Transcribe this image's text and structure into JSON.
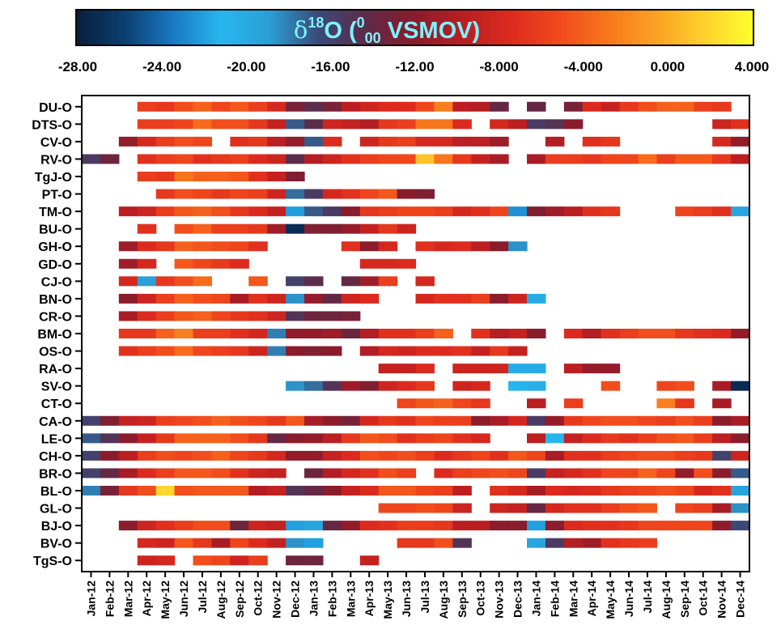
{
  "chart_data": {
    "type": "heatmap",
    "title": "δ18O (0/00 VSMOV)",
    "title_parts": {
      "delta": "δ",
      "sup": "18",
      "element": "O (",
      "num": "0",
      "den": "00",
      "rest": " VSMOV)"
    },
    "colorbar": {
      "range": [
        -28,
        4
      ],
      "tick_labels": [
        "-28.00",
        "-24.00",
        "-20.00",
        "-16.00",
        "-12.00",
        "-8.000",
        "-4.000",
        "0.000",
        "4.000"
      ],
      "colormap": [
        "#0a1e3c",
        "#0b3f70",
        "#1a78c2",
        "#27b6ee",
        "#2a9fd6",
        "#3a4a78",
        "#5e2a48",
        "#8a1c2c",
        "#b81e22",
        "#dd2b1e",
        "#f24a1c",
        "#f7781c",
        "#fba224",
        "#fdd12c",
        "#ffff30"
      ]
    },
    "x_categories": [
      "Jan-12",
      "Feb-12",
      "Mar-12",
      "Apr-12",
      "May-12",
      "Jun-12",
      "Jul-12",
      "Aug-12",
      "Sep-12",
      "Oct-12",
      "Nov-12",
      "Dec-12",
      "Jan-13",
      "Feb-13",
      "Mar-13",
      "Apr-13",
      "May-13",
      "Jun-13",
      "Jul-13",
      "Aug-13",
      "Sep-13",
      "Oct-13",
      "Nov-13",
      "Dec-13",
      "Jan-14",
      "Feb-14",
      "Mar-14",
      "Apr-14",
      "May-14",
      "Jun-14",
      "Jul-14",
      "Aug-14",
      "Sep-14",
      "Oct-14",
      "Nov-14",
      "Dec-14"
    ],
    "y_categories": [
      "DU-O",
      "DTS-O",
      "CV-O",
      "RV-O",
      "TgJ-O",
      "PT-O",
      "TM-O",
      "BU-O",
      "GH-O",
      "GD-O",
      "CJ-O",
      "BN-O",
      "CR-O",
      "BM-O",
      "OS-O",
      "RA-O",
      "SV-O",
      "CT-O",
      "CA-O",
      "LE-O",
      "CH-O",
      "BR-O",
      "BL-O",
      "GL-O",
      "BJ-O",
      "BV-O",
      "TgS-O"
    ],
    "rows": [
      [
        null,
        null,
        null,
        -6.0,
        -6.5,
        -5.0,
        -4.0,
        -5.5,
        -4.5,
        -6.0,
        -8.0,
        -13.0,
        -14.5,
        -13.0,
        -9.5,
        -8.5,
        -7.5,
        -7.5,
        -5.5,
        -2.5,
        -9.5,
        -10.0,
        -14.0,
        null,
        -14.0,
        null,
        -13.0,
        -7.5,
        -9.0,
        -6.5,
        -5.0,
        -4.0,
        -4.0,
        -6.0,
        -6.5,
        null
      ],
      [
        null,
        null,
        null,
        -6.0,
        -6.0,
        -5.5,
        -3.5,
        -5.0,
        -5.0,
        -6.5,
        -9.0,
        -17.0,
        -14.5,
        -8.5,
        -9.0,
        -10.0,
        -6.5,
        -6.0,
        -3.0,
        -3.0,
        -7.5,
        null,
        -8.0,
        -9.5,
        -15.5,
        -15.0,
        -12.0,
        null,
        null,
        null,
        null,
        null,
        null,
        null,
        -8.5,
        -7.0
      ],
      [
        null,
        null,
        -11.5,
        -8.0,
        -6.0,
        -5.0,
        -5.5,
        null,
        -7.0,
        -6.5,
        -9.5,
        -11.5,
        -17.0,
        -7.5,
        null,
        -8.5,
        -6.5,
        -6.0,
        -8.0,
        -8.0,
        -9.5,
        -9.5,
        -11.0,
        null,
        null,
        -10.0,
        null,
        -7.0,
        -6.5,
        null,
        null,
        null,
        null,
        null,
        -8.0,
        -11.5
      ],
      [
        -15.5,
        -13.5,
        null,
        -7.0,
        -6.0,
        -5.5,
        -7.0,
        -6.5,
        -6.0,
        -7.5,
        -8.5,
        -14.5,
        -10.0,
        -8.5,
        -7.0,
        -6.0,
        -5.5,
        -5.5,
        1.0,
        -3.0,
        -6.5,
        -9.0,
        -10.5,
        null,
        -10.5,
        -6.0,
        -6.0,
        -6.5,
        -5.5,
        -5.5,
        -3.5,
        -6.0,
        -4.5,
        -4.5,
        -6.5,
        -9.5
      ],
      [
        null,
        null,
        null,
        -6.0,
        -6.5,
        -3.0,
        -4.0,
        -4.0,
        -4.5,
        -7.0,
        -9.0,
        -12.5,
        null,
        null,
        null,
        null,
        null,
        null,
        null,
        null,
        null,
        null,
        null,
        null,
        null,
        null,
        null,
        null,
        null,
        null,
        null,
        null,
        null,
        null,
        null,
        null
      ],
      [
        null,
        null,
        null,
        null,
        -6.5,
        -5.0,
        -5.5,
        -6.5,
        -5.5,
        -6.0,
        -8.5,
        -17.5,
        -15.5,
        -8.0,
        -7.0,
        -5.5,
        -4.5,
        -12.0,
        -12.5,
        null,
        null,
        null,
        null,
        null,
        null,
        null,
        null,
        null,
        null,
        null,
        null,
        null,
        null,
        null,
        null,
        null
      ],
      [
        null,
        null,
        -9.5,
        -8.5,
        -6.0,
        -4.5,
        -4.0,
        -5.0,
        -6.5,
        -7.5,
        -9.0,
        -22.0,
        -17.0,
        -15.5,
        -12.0,
        -6.5,
        -6.0,
        -5.5,
        -5.5,
        -6.0,
        -8.0,
        -7.0,
        -5.5,
        -22.5,
        -12.5,
        -11.0,
        -9.5,
        -7.0,
        -6.5,
        null,
        null,
        null,
        -5.5,
        -6.0,
        -7.0,
        -19.5
      ],
      [
        null,
        null,
        null,
        -7.0,
        null,
        -5.0,
        -4.0,
        -6.0,
        -6.0,
        -6.5,
        -11.0,
        -27.0,
        -12.5,
        -12.5,
        -11.5,
        -9.0,
        -6.5,
        -8.5,
        null,
        null,
        null,
        null,
        null,
        null,
        null,
        null,
        null,
        null,
        null,
        null,
        null,
        null,
        null,
        null,
        null,
        null
      ],
      [
        null,
        null,
        -11.0,
        -7.5,
        -6.5,
        -4.0,
        -4.5,
        -5.0,
        -5.5,
        -7.0,
        null,
        null,
        null,
        null,
        -7.0,
        -12.0,
        -8.0,
        null,
        -7.0,
        -8.0,
        -7.5,
        -9.5,
        -12.0,
        -18.5,
        null,
        null,
        null,
        null,
        null,
        null,
        null,
        null,
        null,
        null,
        null,
        null
      ],
      [
        null,
        null,
        -11.0,
        -8.0,
        null,
        -4.5,
        -5.5,
        -6.5,
        -7.5,
        null,
        null,
        null,
        null,
        null,
        null,
        -8.0,
        -8.0,
        -7.5,
        null,
        null,
        null,
        null,
        null,
        null,
        null,
        null,
        null,
        null,
        null,
        null,
        null,
        null,
        null,
        null,
        null,
        null
      ],
      [
        null,
        null,
        -8.0,
        -19.0,
        -6.5,
        -5.0,
        -3.5,
        null,
        null,
        -4.5,
        null,
        -16.0,
        -14.5,
        null,
        -14.0,
        -11.0,
        -6.0,
        null,
        -8.0,
        null,
        null,
        null,
        null,
        null,
        null,
        null,
        null,
        null,
        null,
        null,
        null,
        null,
        null,
        null,
        null,
        null
      ],
      [
        null,
        null,
        -12.0,
        -8.5,
        -6.0,
        -4.0,
        -5.0,
        -5.5,
        -10.5,
        -7.0,
        -8.5,
        -18.5,
        -11.5,
        -14.0,
        -8.5,
        -7.5,
        null,
        null,
        -8.0,
        -7.0,
        -7.0,
        -6.0,
        -12.0,
        -8.5,
        -21.5,
        null,
        null,
        null,
        null,
        null,
        null,
        null,
        null,
        null,
        null,
        null
      ],
      [
        null,
        null,
        -10.5,
        -7.5,
        -6.0,
        -4.5,
        -4.0,
        -5.5,
        -6.5,
        -7.0,
        -8.5,
        -15.0,
        -13.5,
        -13.5,
        -13.0,
        null,
        null,
        null,
        null,
        null,
        null,
        null,
        null,
        null,
        null,
        null,
        null,
        null,
        null,
        null,
        null,
        null,
        null,
        null,
        null,
        null
      ],
      [
        null,
        null,
        -6.5,
        -6.5,
        -4.0,
        -2.5,
        -6.0,
        -6.0,
        -7.0,
        -8.0,
        -18.0,
        -11.5,
        -11.5,
        -11.0,
        -13.5,
        -10.0,
        -7.0,
        -7.0,
        -6.0,
        -4.0,
        null,
        -7.0,
        -10.0,
        -9.0,
        -12.0,
        null,
        -7.5,
        -10.0,
        -7.0,
        -6.0,
        -5.0,
        -5.0,
        -6.5,
        -7.0,
        -7.5,
        -11.5
      ],
      [
        null,
        null,
        -7.0,
        -6.0,
        -5.0,
        -3.5,
        -5.5,
        -6.0,
        -6.5,
        -8.5,
        -18.0,
        -12.0,
        -12.5,
        -12.0,
        null,
        -10.0,
        -8.0,
        -8.5,
        -7.5,
        -7.5,
        -7.0,
        -9.0,
        -6.5,
        -9.0,
        null,
        null,
        null,
        null,
        null,
        null,
        null,
        null,
        null,
        null,
        null,
        null
      ],
      [
        null,
        null,
        null,
        null,
        null,
        null,
        null,
        null,
        null,
        null,
        null,
        null,
        null,
        null,
        null,
        null,
        -9.0,
        -9.0,
        -7.5,
        null,
        -8.5,
        -8.5,
        -8.5,
        -21.5,
        -21.5,
        null,
        -9.5,
        -11.5,
        -11.5,
        null,
        null,
        null,
        null,
        null,
        null,
        null
      ],
      [
        null,
        null,
        null,
        null,
        null,
        null,
        null,
        null,
        null,
        null,
        null,
        -18.5,
        -17.5,
        -15.0,
        -11.0,
        -12.5,
        -8.5,
        -7.5,
        -6.5,
        null,
        -8.5,
        -8.0,
        null,
        -21.0,
        -20.5,
        null,
        null,
        null,
        -5.0,
        null,
        null,
        -5.5,
        -5.0,
        null,
        -10.5,
        -27.0
      ],
      [
        null,
        null,
        null,
        null,
        null,
        null,
        null,
        null,
        null,
        null,
        null,
        null,
        null,
        null,
        null,
        null,
        null,
        -5.5,
        -4.5,
        -4.0,
        -5.5,
        -6.5,
        null,
        null,
        -9.5,
        null,
        -6.0,
        null,
        null,
        null,
        null,
        -2.5,
        -6.5,
        null,
        -10.5,
        null
      ],
      [
        -16.0,
        -12.5,
        -9.0,
        -8.5,
        -6.0,
        -5.5,
        -5.0,
        -4.0,
        -5.0,
        -5.5,
        -6.5,
        -4.5,
        -10.5,
        -12.0,
        -13.0,
        -8.0,
        -6.5,
        -7.0,
        -5.5,
        -6.0,
        -6.0,
        -12.0,
        -10.5,
        -8.0,
        -15.5,
        -11.5,
        -6.5,
        -5.5,
        -5.0,
        -5.0,
        -5.5,
        -6.0,
        -5.0,
        -6.0,
        -12.0,
        -10.5
      ],
      [
        -17.0,
        -15.0,
        -12.0,
        -9.0,
        -6.5,
        -4.0,
        -4.0,
        -4.0,
        -5.0,
        -6.5,
        -14.0,
        -12.0,
        -11.5,
        -9.5,
        -6.5,
        -4.5,
        -5.0,
        -7.0,
        -6.0,
        -5.5,
        -7.0,
        -8.0,
        null,
        null,
        -9.5,
        -21.0,
        -9.0,
        -7.5,
        -6.5,
        -7.0,
        -6.0,
        -5.0,
        -4.5,
        -6.0,
        -9.5,
        -12.0
      ],
      [
        -16.0,
        -12.0,
        -9.5,
        -6.0,
        -5.0,
        -5.5,
        -5.0,
        -4.0,
        -5.5,
        -6.5,
        -8.0,
        -11.5,
        -11.5,
        -9.0,
        -7.5,
        -5.0,
        -5.5,
        -5.0,
        -6.0,
        -7.5,
        -6.5,
        -5.5,
        -7.0,
        -4.5,
        -5.5,
        -10.5,
        -7.0,
        -7.0,
        -6.0,
        -5.5,
        -5.0,
        -5.0,
        -6.0,
        -6.5,
        -16.0,
        -8.5
      ],
      [
        -16.0,
        -14.0,
        -10.5,
        -7.5,
        -6.0,
        -4.5,
        -4.5,
        -5.0,
        -7.0,
        -8.5,
        -9.0,
        null,
        -13.5,
        -10.0,
        -8.0,
        -7.0,
        -5.0,
        -6.0,
        null,
        -7.5,
        -6.0,
        -5.5,
        -5.0,
        -5.5,
        -15.5,
        -9.0,
        -8.0,
        -7.0,
        -5.5,
        -5.5,
        -4.0,
        -5.5,
        -11.5,
        -5.0,
        -12.0,
        -17.0
      ],
      [
        -18.0,
        -13.0,
        -6.5,
        -5.0,
        2.0,
        -5.0,
        -4.5,
        -4.5,
        -4.5,
        -10.0,
        -9.0,
        -15.0,
        -14.0,
        -12.0,
        -9.0,
        -7.5,
        -4.5,
        -4.5,
        -5.5,
        -6.0,
        -9.5,
        null,
        -7.0,
        -8.0,
        -10.5,
        -7.5,
        -8.0,
        -7.5,
        -6.5,
        -6.0,
        -5.5,
        -5.0,
        -5.5,
        -8.0,
        -7.0,
        -19.5
      ],
      [
        null,
        null,
        null,
        null,
        null,
        null,
        null,
        null,
        null,
        null,
        null,
        null,
        null,
        null,
        null,
        null,
        -5.5,
        -5.5,
        -5.0,
        -5.5,
        -8.5,
        null,
        -8.5,
        -9.0,
        -14.0,
        -8.0,
        -7.0,
        -7.0,
        -6.0,
        -5.0,
        -4.5,
        null,
        -5.5,
        -6.0,
        -10.5,
        -18.5
      ],
      [
        null,
        null,
        -12.0,
        -8.5,
        -7.0,
        -6.0,
        -5.0,
        -5.0,
        -13.5,
        -8.5,
        -9.0,
        -22.0,
        -19.5,
        -14.0,
        -11.5,
        -7.5,
        -7.0,
        -6.0,
        -6.0,
        -6.5,
        -9.5,
        -9.5,
        -12.0,
        -12.0,
        -22.0,
        -12.0,
        -7.5,
        -7.0,
        -7.0,
        -6.5,
        -5.5,
        -5.5,
        -5.5,
        -5.5,
        -12.0,
        -16.5
      ],
      [
        null,
        null,
        null,
        -8.0,
        -8.5,
        -4.5,
        -6.5,
        -10.5,
        -5.5,
        -7.5,
        -9.0,
        -18.5,
        -22.0,
        null,
        null,
        null,
        null,
        -6.5,
        -6.5,
        -5.0,
        -15.0,
        null,
        null,
        null,
        -19.5,
        -15.5,
        -10.0,
        -11.0,
        -7.0,
        -6.5,
        -6.0,
        null,
        null,
        null,
        null,
        null
      ],
      [
        null,
        null,
        null,
        -8.5,
        -8.0,
        null,
        -5.0,
        -5.5,
        -8.5,
        -6.0,
        null,
        -13.5,
        -13.5,
        null,
        null,
        -9.0,
        null,
        null,
        null,
        null,
        null,
        null,
        null,
        null,
        null,
        null,
        null,
        null,
        null,
        null,
        null,
        null,
        null,
        null,
        null,
        null
      ]
    ]
  }
}
